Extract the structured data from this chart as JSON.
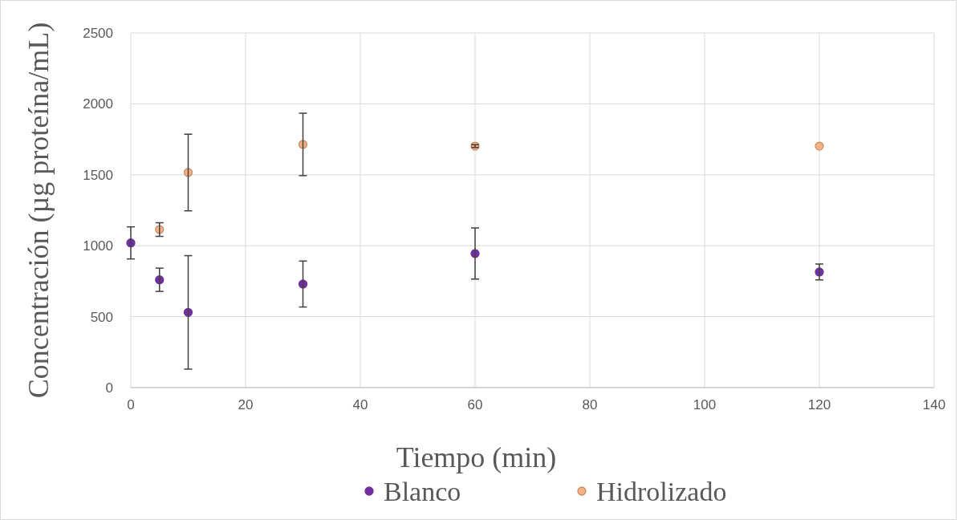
{
  "chart_data": {
    "type": "scatter",
    "xlabel": "Tiempo (min)",
    "ylabel": "Concentración (µg proteína/mL)",
    "xlim": [
      0,
      140
    ],
    "xticks": [
      0,
      20,
      40,
      60,
      80,
      100,
      120,
      140
    ],
    "ylim": [
      0,
      2500
    ],
    "yticks": [
      0,
      500,
      1000,
      1500,
      2000,
      2500
    ],
    "grid": true,
    "legend": "bottom",
    "marker": "circle",
    "series": [
      {
        "name": "Blanco",
        "color": "#7030a0",
        "x": [
          0,
          5,
          10,
          30,
          60,
          120
        ],
        "values": [
          1020,
          760,
          530,
          730,
          945,
          815
        ],
        "errors": [
          113,
          82,
          400,
          162,
          180,
          56
        ]
      },
      {
        "name": "Hidrolizado",
        "color": "#f4b183",
        "x": [
          5,
          10,
          30,
          60,
          120
        ],
        "values": [
          1114,
          1516,
          1714,
          1702,
          1702
        ],
        "errors": [
          48,
          270,
          220,
          10,
          null
        ]
      }
    ]
  }
}
